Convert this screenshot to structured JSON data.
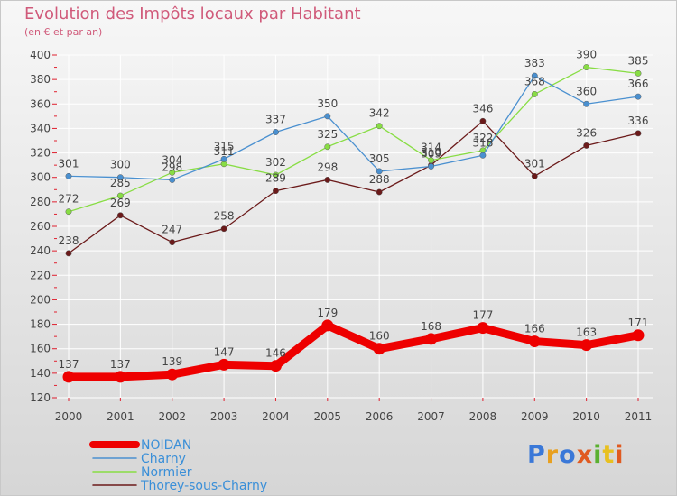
{
  "title": "Evolution des Impôts locaux par Habitant",
  "subtitle": "(en € et par an)",
  "logo_text": "Proxiti",
  "colors": {
    "title": "#d05a7a",
    "axis_labels": "#444444",
    "legend_text": "#3a8fd8",
    "grid": "#ffffff",
    "axis_ticks": "#e0202f"
  },
  "chart_data": {
    "type": "line",
    "title": "Evolution des Impôts locaux par Habitant",
    "subtitle": "(en € et par an)",
    "xlabel": "",
    "ylabel": "",
    "x": [
      "2000",
      "2001",
      "2002",
      "2003",
      "2004",
      "2005",
      "2006",
      "2007",
      "2008",
      "2009",
      "2010",
      "2011"
    ],
    "ylim": [
      120,
      400
    ],
    "yticks": [
      120,
      140,
      160,
      180,
      200,
      220,
      240,
      260,
      280,
      300,
      320,
      340,
      360,
      380,
      400
    ],
    "grid": true,
    "legend_placement": "bottom-left",
    "series": [
      {
        "name": "NOIDAN",
        "color": "#ee0000",
        "values": [
          137,
          137,
          139,
          147,
          146,
          179,
          160,
          168,
          177,
          166,
          163,
          171
        ],
        "labels": [
          "137",
          "137",
          "139",
          "147",
          "146",
          "179",
          "160",
          "168",
          "177",
          "166",
          "163",
          "171"
        ]
      },
      {
        "name": "Charny",
        "color": "#4a90d0",
        "values": [
          301,
          300,
          298,
          315,
          337,
          350,
          305,
          309,
          318,
          383,
          360,
          366
        ],
        "labels": [
          "301",
          "300",
          "",
          "315",
          "337",
          "350",
          "305",
          "309",
          "",
          "383",
          "360",
          "366"
        ]
      },
      {
        "name": "Normier",
        "color": "#88dd44",
        "values": [
          272,
          285,
          304,
          311,
          302,
          325,
          342,
          314,
          322,
          368,
          390,
          385
        ],
        "labels": [
          "272",
          "285",
          "304",
          "311",
          "302",
          "325",
          "342",
          "314",
          "322",
          "368",
          "390",
          "385"
        ]
      },
      {
        "name": "Thorey-sous-Charny",
        "color": "#6b1a1a",
        "values": [
          238,
          269,
          247,
          258,
          289,
          298,
          288,
          310,
          346,
          301,
          326,
          336
        ],
        "labels": [
          "238",
          "269",
          "247",
          "258",
          "289",
          "298",
          "288",
          "",
          "346",
          "301",
          "326",
          "336"
        ]
      }
    ],
    "extra_labels": [
      {
        "series": "Charny",
        "index": 2,
        "text": "298"
      },
      {
        "series": "Charny",
        "index": 8,
        "text": "318"
      },
      {
        "series": "Thorey-sous-Charny",
        "index": 7,
        "text": "310"
      }
    ]
  }
}
